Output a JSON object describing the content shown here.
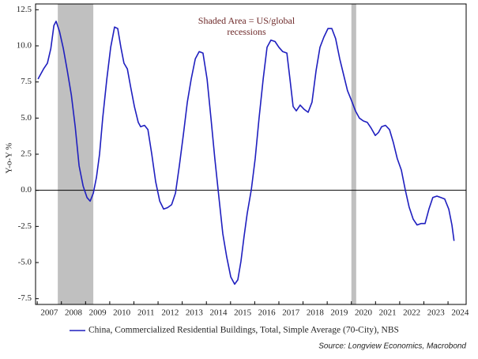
{
  "chart_data": {
    "type": "line",
    "ylabel": "Y-o-Y %",
    "annotation": [
      "Shaded Area = US/global",
      "recessions"
    ],
    "source": "Source: Longview Economics, Macrobond",
    "xlim": [
      2006.93,
      2024.75
    ],
    "ylim": [
      -7.9,
      12.9
    ],
    "xticks": [
      2007,
      2008,
      2009,
      2010,
      2011,
      2012,
      2013,
      2014,
      2015,
      2016,
      2017,
      2018,
      2019,
      2020,
      2021,
      2022,
      2023,
      2024
    ],
    "yticks": [
      12.5,
      {
        "value": 10,
        "label": "10.0"
      },
      7.5,
      {
        "value": 5,
        "label": "5.0"
      },
      2.5,
      {
        "value": 0,
        "label": "0.0"
      },
      -2.5,
      {
        "value": -5,
        "label": "-5.0"
      },
      -7.5
    ],
    "shaded": [
      [
        2007.85,
        2009.32
      ],
      [
        2020.0,
        2020.2
      ]
    ],
    "shade_color": "#c0c0c0",
    "grid": false,
    "x": [
      2007.03,
      2007.26,
      2007.42,
      2007.56,
      2007.69,
      2007.78,
      2007.92,
      2008.08,
      2008.24,
      2008.41,
      2008.57,
      2008.73,
      2008.9,
      2009.06,
      2009.19,
      2009.32,
      2009.45,
      2009.58,
      2009.71,
      2009.88,
      2010.04,
      2010.2,
      2010.33,
      2010.46,
      2010.59,
      2010.73,
      2010.86,
      2011.02,
      2011.18,
      2011.28,
      2011.44,
      2011.58,
      2011.74,
      2011.9,
      2012.07,
      2012.23,
      2012.39,
      2012.56,
      2012.72,
      2012.88,
      2013.05,
      2013.21,
      2013.37,
      2013.54,
      2013.7,
      2013.86,
      2014.03,
      2014.19,
      2014.35,
      2014.52,
      2014.68,
      2014.84,
      2015.01,
      2015.17,
      2015.3,
      2015.43,
      2015.56,
      2015.69,
      2015.86,
      2016.02,
      2016.18,
      2016.35,
      2016.51,
      2016.67,
      2016.84,
      2017.0,
      2017.16,
      2017.33,
      2017.46,
      2017.59,
      2017.72,
      2017.88,
      2018.05,
      2018.21,
      2018.37,
      2018.54,
      2018.7,
      2018.86,
      2019.03,
      2019.19,
      2019.35,
      2019.52,
      2019.68,
      2019.84,
      2020.01,
      2020.17,
      2020.33,
      2020.5,
      2020.66,
      2020.82,
      2020.99,
      2021.12,
      2021.25,
      2021.41,
      2021.58,
      2021.74,
      2021.9,
      2022.07,
      2022.23,
      2022.39,
      2022.56,
      2022.72,
      2022.88,
      2023.05,
      2023.21,
      2023.37,
      2023.54,
      2023.7,
      2023.86,
      2024.03,
      2024.16,
      2024.25
    ],
    "series": [
      {
        "name": "China, Commercialized Residential Buildings, Total, Simple Average (70-City), NBS",
        "color": "#1f1fbf",
        "values": [
          7.7,
          8.4,
          8.8,
          9.8,
          11.4,
          11.7,
          11.0,
          9.8,
          8.3,
          6.6,
          4.4,
          1.7,
          0.3,
          -0.5,
          -0.75,
          -0.2,
          0.9,
          2.5,
          5.0,
          7.7,
          9.9,
          11.3,
          11.2,
          9.9,
          8.8,
          8.4,
          7.2,
          5.8,
          4.7,
          4.4,
          4.5,
          4.2,
          2.5,
          0.6,
          -0.75,
          -1.3,
          -1.2,
          -1.0,
          -0.2,
          1.7,
          3.9,
          6.1,
          7.7,
          9.1,
          9.6,
          9.5,
          7.7,
          5.0,
          2.2,
          -0.5,
          -3.0,
          -4.6,
          -6.0,
          -6.5,
          -6.2,
          -4.9,
          -3.2,
          -1.6,
          0.05,
          2.2,
          5.0,
          7.7,
          9.9,
          10.4,
          10.3,
          9.9,
          9.6,
          9.5,
          7.7,
          5.8,
          5.5,
          5.9,
          5.6,
          5.4,
          6.1,
          8.3,
          9.9,
          10.6,
          11.2,
          11.2,
          10.5,
          9.1,
          8.0,
          6.9,
          6.2,
          5.5,
          5.0,
          4.8,
          4.7,
          4.3,
          3.8,
          4.0,
          4.4,
          4.5,
          4.2,
          3.3,
          2.2,
          1.4,
          0.05,
          -1.15,
          -2.0,
          -2.4,
          -2.3,
          -2.3,
          -1.3,
          -0.5,
          -0.4,
          -0.5,
          -0.6,
          -1.3,
          -2.4,
          -3.5
        ]
      }
    ]
  }
}
